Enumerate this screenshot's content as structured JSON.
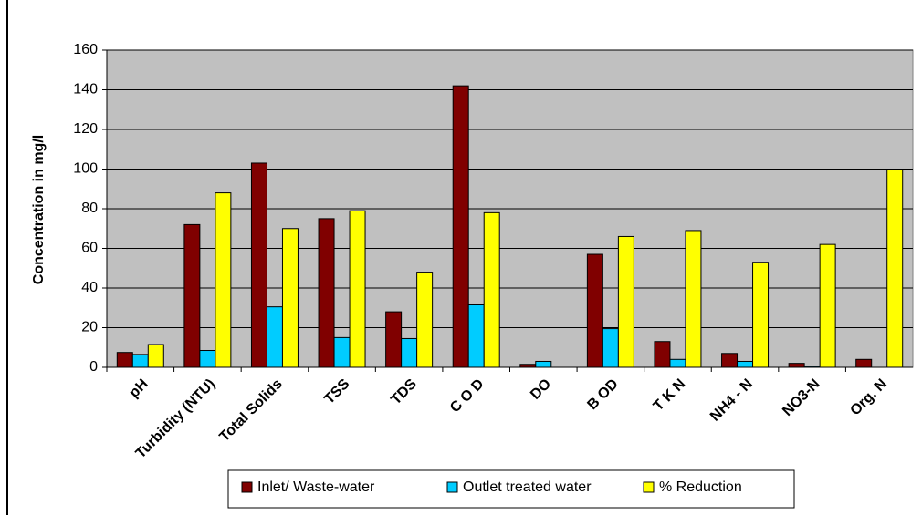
{
  "chart_data": {
    "type": "bar",
    "y_label": "Concentration in mg/l",
    "categories": [
      "pH",
      "Turbidity (NTU)",
      "Total Solids",
      "TSS",
      "TDS",
      "C O D",
      "DO",
      "B OD",
      "T K N",
      "NH4 - N",
      "NO3-N",
      "Org. N"
    ],
    "series": [
      {
        "name": "Inlet/  Waste-water",
        "color": "#800000",
        "values": [
          7.5,
          72,
          103,
          75,
          28,
          142,
          1.5,
          57,
          13,
          7,
          2,
          4
        ]
      },
      {
        "name": "Outlet treated water",
        "color": "#00ccff",
        "values": [
          6.5,
          8.5,
          30.5,
          15,
          14.5,
          31.5,
          3,
          19.5,
          4,
          3,
          0.5,
          0
        ]
      },
      {
        "name": "% Reduction",
        "color": "#ffff00",
        "values": [
          11.5,
          88,
          70,
          79,
          48,
          78,
          0,
          66,
          69,
          53,
          62,
          100
        ]
      }
    ],
    "ylim": [
      0,
      160
    ],
    "yticks": [
      0,
      20,
      40,
      60,
      80,
      100,
      120,
      140,
      160
    ],
    "grid": true,
    "legend": "bottom"
  }
}
